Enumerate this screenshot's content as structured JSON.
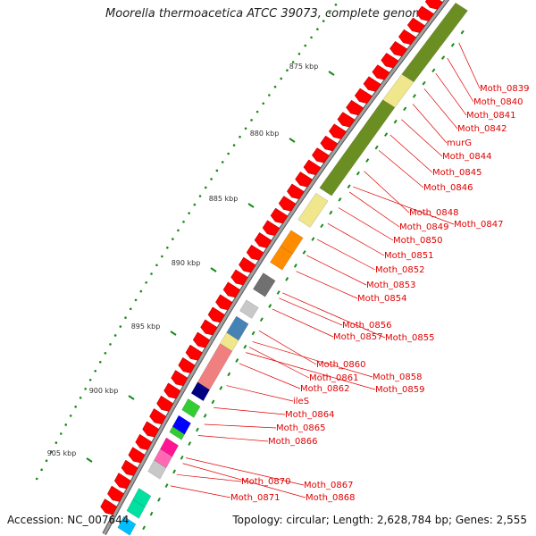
{
  "title": "Moorella thermoacetica ATCC 39073, complete genome",
  "accession": "Accession: NC_007644",
  "topology": "Topology: circular; Length: 2,628,784 bp; Genes: 2,555",
  "colors": {
    "cds_forward": "#ff0000",
    "backbone": "#a0a0a0",
    "label": "#e00000",
    "tick": "#1a8a1a",
    "olive": "#6b8e23",
    "pale_yellow": "#f0e68c",
    "orange": "#ff8c00",
    "gray": "#707070",
    "steel_blue": "#4682b4",
    "salmon": "#f08080",
    "navy": "#000080",
    "green": "#32cd32",
    "blue": "#0000ff",
    "pink": "#ff69b4",
    "magenta": "#ff1493",
    "light_gray": "#c8c8c8",
    "aqua": "#00e0a0"
  },
  "tick_labels": [
    "875 kbp",
    "880 kbp",
    "885 kbp",
    "890 kbp",
    "895 kbp",
    "900 kbp",
    "905 kbp"
  ],
  "gene_labels": [
    "Moth_0839",
    "Moth_0840",
    "Moth_0841",
    "Moth_0842",
    "murG",
    "Moth_0844",
    "Moth_0845",
    "Moth_0846",
    "Moth_0848",
    "Moth_0847",
    "Moth_0849",
    "Moth_0850",
    "Moth_0851",
    "Moth_0852",
    "Moth_0853",
    "Moth_0854",
    "Moth_0856",
    "Moth_0857",
    "Moth_0855",
    "Moth_0860",
    "Moth_0858",
    "Moth_0861",
    "Moth_0859",
    "Moth_0862",
    "ileS",
    "Moth_0864",
    "Moth_0865",
    "Moth_0866",
    "Moth_0867",
    "Moth_0870",
    "Moth_0868",
    "Moth_0871"
  ]
}
